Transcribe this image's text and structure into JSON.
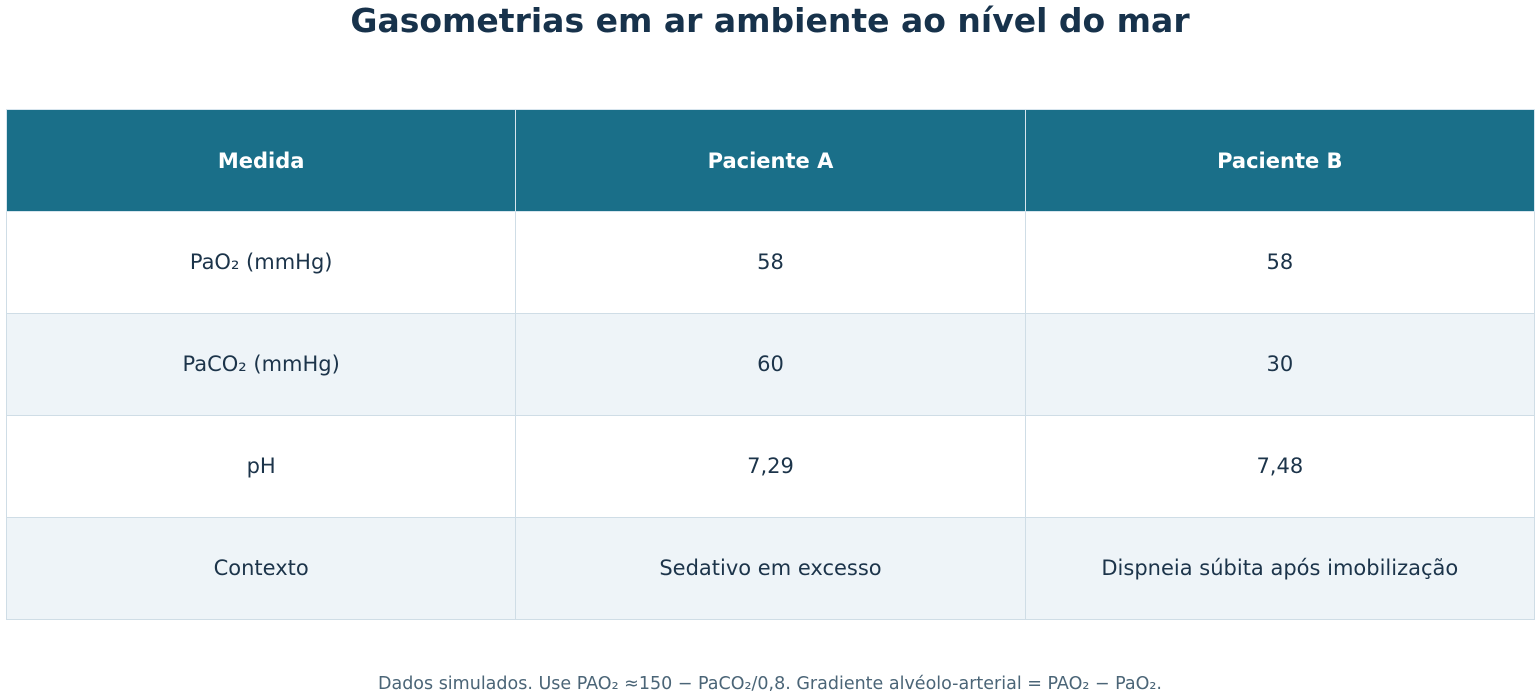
{
  "title": "Gasometrias em ar ambiente ao nível do mar",
  "table": {
    "columns": [
      "Medida",
      "Paciente A",
      "Paciente B"
    ],
    "rows": [
      [
        "PaO₂ (mmHg)",
        "58",
        "58"
      ],
      [
        "PaCO₂ (mmHg)",
        "60",
        "30"
      ],
      [
        "pH",
        "7,29",
        "7,48"
      ],
      [
        "Contexto",
        "Sedativo em excesso",
        "Dispneia súbita após imobilização"
      ]
    ]
  },
  "footnote": "Dados simulados. Use PAO₂ ≈150 − PaCO₂/0,8. Gradiente alvéolo-arterial = PAO₂ − PaO₂.",
  "chart_data": {
    "type": "table",
    "title": "Gasometrias em ar ambiente ao nível do mar",
    "columns": [
      "Medida",
      "Paciente A",
      "Paciente B"
    ],
    "rows": [
      [
        "PaO₂ (mmHg)",
        "58",
        "58"
      ],
      [
        "PaCO₂ (mmHg)",
        "60",
        "30"
      ],
      [
        "pH",
        "7,29",
        "7,48"
      ],
      [
        "Contexto",
        "Sedativo em excesso",
        "Dispneia súbita após imobilização"
      ]
    ],
    "footnote": "Dados simulados. Use PAO₂ ≈150 − PaCO₂/0,8. Gradiente alvéolo-arterial = PAO₂ − PaO₂."
  },
  "colors": {
    "header_background": "#1a6f89",
    "header_text": "#ffffff",
    "body_text": "#1c344a",
    "alternate_row_background": "#eef4f8",
    "grid_line": "#cfdde6"
  }
}
